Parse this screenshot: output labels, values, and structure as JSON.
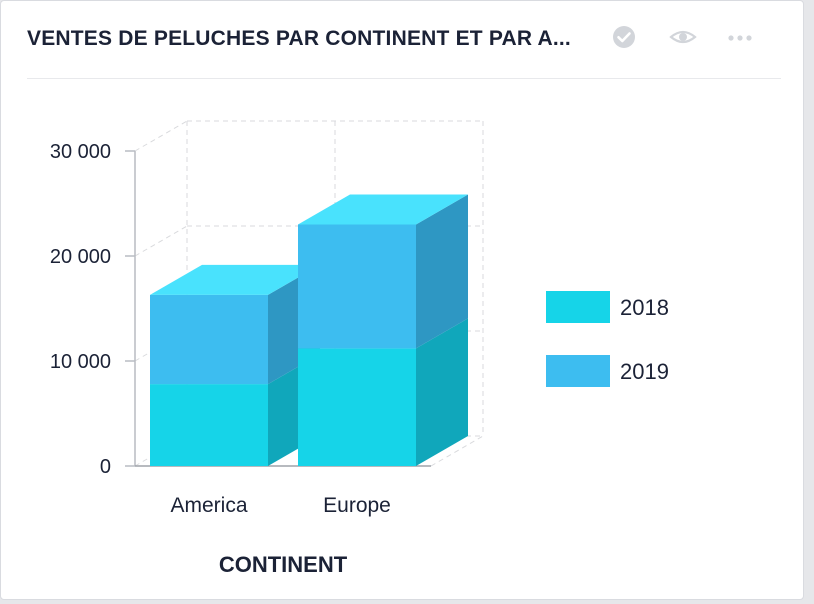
{
  "widget": {
    "title": "VENTES DE PELUCHES PAR CONTINENT ET PAR A...",
    "icons": [
      "check-circle-icon",
      "eye-icon",
      "more-horizontal-icon"
    ]
  },
  "colors": {
    "series_2018": "#16d4e8",
    "series_2019": "#3dbdf0",
    "top_face": "#49e2fd",
    "side_2018": "#10a7bb",
    "side_2019": "#2e97c3"
  },
  "chart_data": {
    "type": "bar",
    "stacked": true,
    "three_d": true,
    "categories": [
      "America",
      "Europe"
    ],
    "series": [
      {
        "name": "2018",
        "values": [
          7800,
          11200
        ]
      },
      {
        "name": "2019",
        "values": [
          8500,
          11800
        ]
      }
    ],
    "xlabel": "CONTINENT",
    "ylabel": "",
    "ylim": [
      0,
      30000
    ],
    "yticks": [
      0,
      10000,
      20000,
      30000
    ],
    "ytick_labels": [
      "0",
      "10 000",
      "20 000",
      "30 000"
    ],
    "grid": true,
    "legend": "right"
  }
}
